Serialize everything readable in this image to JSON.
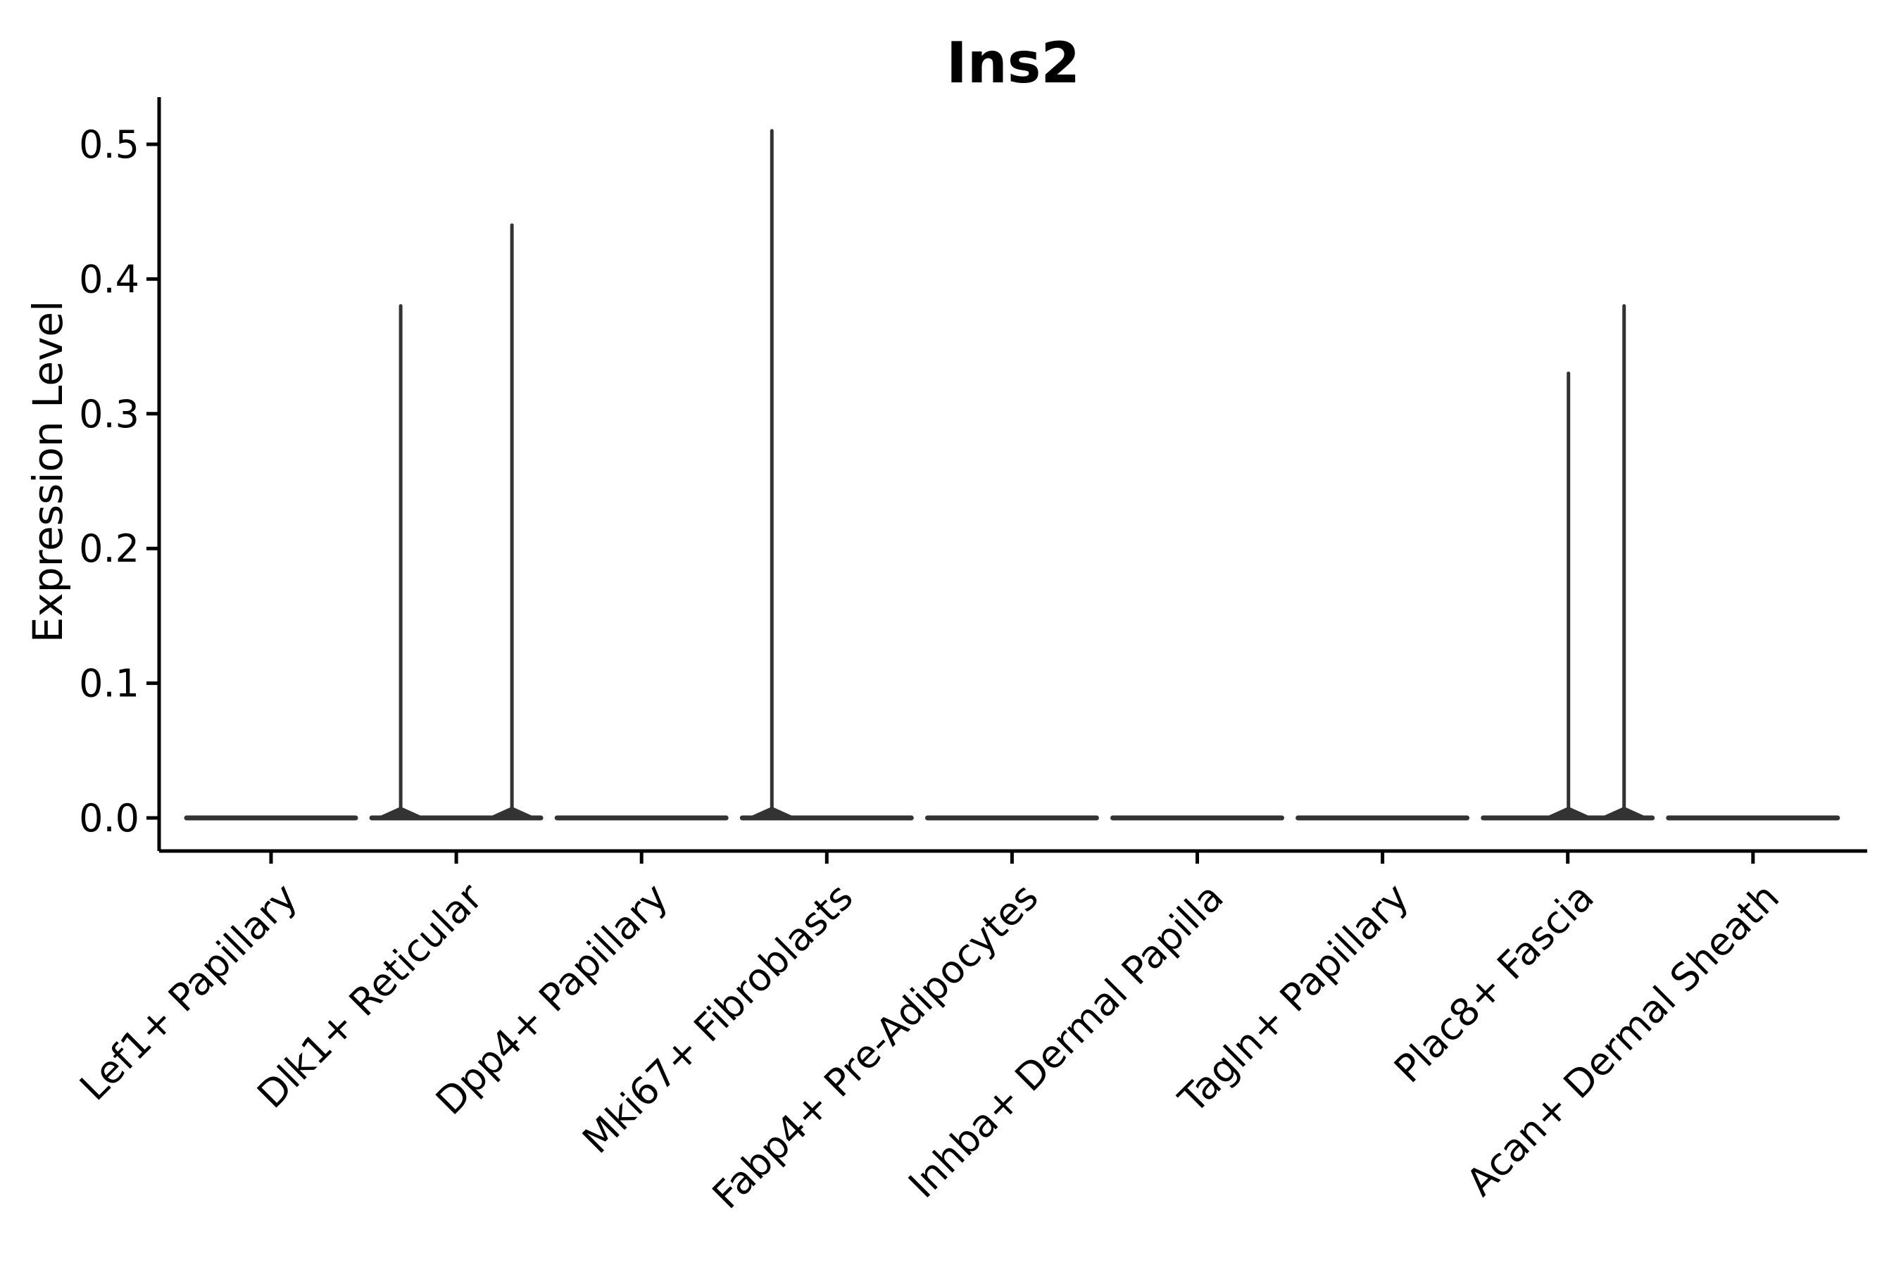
{
  "chart_data": {
    "type": "violin",
    "title": "Ins2",
    "ylabel": "Expression Level",
    "xlabel": "",
    "ylim": [
      0,
      0.5
    ],
    "ytick_labels": [
      "0.0",
      "0.1",
      "0.2",
      "0.3",
      "0.4",
      "0.5"
    ],
    "ytick_values": [
      0.0,
      0.1,
      0.2,
      0.3,
      0.4,
      0.5
    ],
    "grid": "off",
    "legend": "none",
    "categories": [
      "Lef1+ Papillary",
      "Dlk1+ Reticular",
      "Dpp4+ Papillary",
      "Mki67+ Fibroblasts",
      "Fabp4+ Pre-Adipocytes",
      "Inhba+ Dermal Papilla",
      "Tagln+ Papillary",
      "Plac8+ Fascia",
      "Acan+ Dermal Sheath"
    ],
    "series": [
      {
        "category": "Lef1+ Papillary",
        "baseline_value": 0.0,
        "spikes": []
      },
      {
        "category": "Dlk1+ Reticular",
        "baseline_value": 0.0,
        "spikes": [
          {
            "value": 0.38,
            "dx": -79
          },
          {
            "value": 0.44,
            "dx": 79
          }
        ]
      },
      {
        "category": "Dpp4+ Papillary",
        "baseline_value": 0.0,
        "spikes": []
      },
      {
        "category": "Mki67+ Fibroblasts",
        "baseline_value": 0.0,
        "spikes": [
          {
            "value": 0.51,
            "dx": -78
          }
        ]
      },
      {
        "category": "Fabp4+ Pre-Adipocytes",
        "baseline_value": 0.0,
        "spikes": []
      },
      {
        "category": "Inhba+ Dermal Papilla",
        "baseline_value": 0.0,
        "spikes": []
      },
      {
        "category": "Tagln+ Papillary",
        "baseline_value": 0.0,
        "spikes": []
      },
      {
        "category": "Plac8+ Fascia",
        "baseline_value": 0.0,
        "spikes": [
          {
            "value": 0.33,
            "dx": 1
          },
          {
            "value": 0.38,
            "dx": 80
          }
        ]
      },
      {
        "category": "Acan+ Dermal Sheath",
        "baseline_value": 0.0,
        "spikes": []
      }
    ],
    "colors": {
      "violin_line": "#333333",
      "axis": "#000000",
      "text": "#000000",
      "background": "#ffffff"
    }
  }
}
